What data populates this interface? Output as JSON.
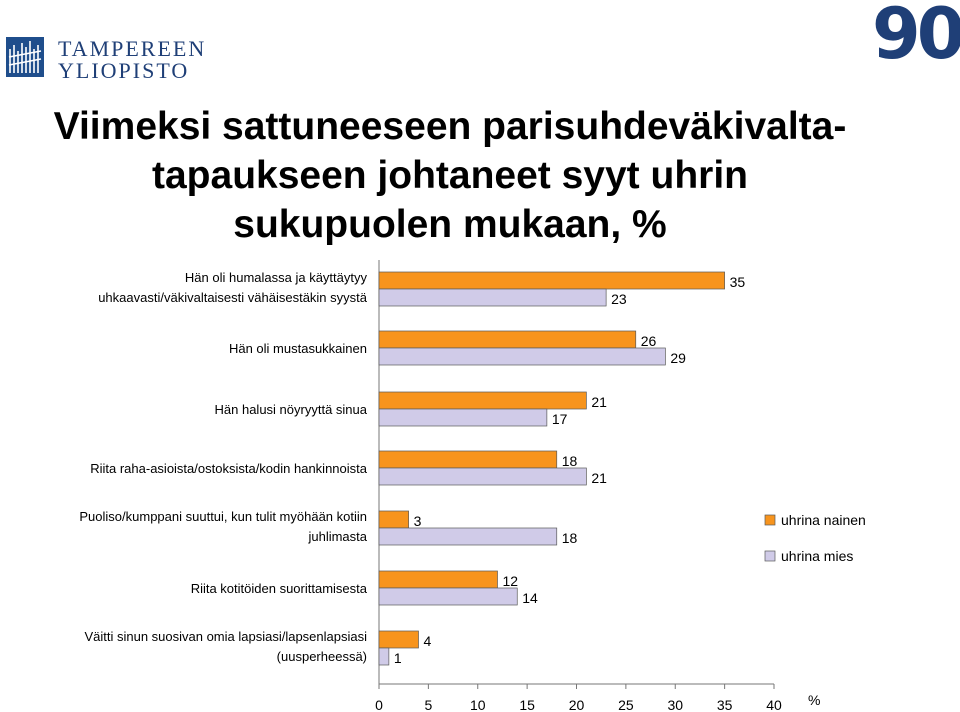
{
  "header": {
    "logo_line1": "TAMPEREEN",
    "logo_line2": "YLIOPISTO",
    "anniversary": "90"
  },
  "title_lines": [
    "Viimeksi sattuneeseen parisuhdeväkivalta-",
    "tapaukseen johtaneet syyt uhrin",
    "sukupuolen mukaan, %"
  ],
  "chart_data": {
    "type": "bar",
    "orientation": "horizontal",
    "categories": [
      [
        "Hän oli humalassa ja käyttäytyy",
        "uhkaavasti/väkivaltaisesti vähäisestäkin syystä"
      ],
      [
        "Hän oli mustasukkainen"
      ],
      [
        "Hän halusi nöyryyttä sinua"
      ],
      [
        "Riita raha-asioista/ostoksista/kodin hankinnoista"
      ],
      [
        "Puoliso/kumppani suuttui, kun tulit myöhään kotiin",
        "juhlimasta"
      ],
      [
        "Riita kotitöiden suorittamisesta"
      ],
      [
        "Väitti sinun suosivan omia lapsiasi/lapsenlapsiasi",
        "(uusperheessä)"
      ]
    ],
    "series": [
      {
        "name": "uhrina nainen",
        "color": "#f7941d",
        "values": [
          35,
          26,
          21,
          18,
          3,
          12,
          4
        ]
      },
      {
        "name": "uhrina mies",
        "color": "#d0cbe8",
        "values": [
          23,
          29,
          17,
          21,
          18,
          14,
          1
        ]
      }
    ],
    "xlim": [
      0,
      40
    ],
    "xticks": [
      0,
      5,
      10,
      15,
      20,
      25,
      30,
      35,
      40
    ],
    "xlabel": "%",
    "legend_position": "right",
    "grid": false
  }
}
